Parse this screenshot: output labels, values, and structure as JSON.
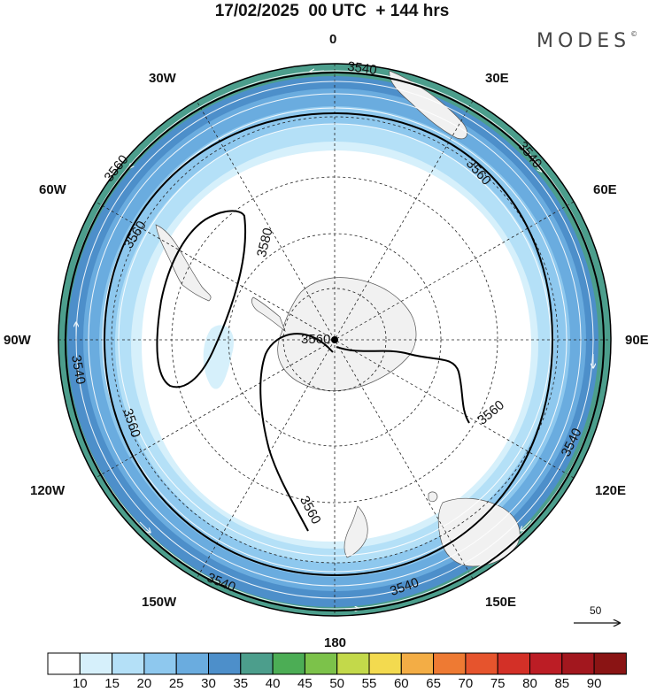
{
  "header": {
    "title": "17/02/2025  00 UTC  + 144 hrs",
    "brand": "MODES"
  },
  "map": {
    "projection": "south-polar-stereographic",
    "background_color": "#ffffff",
    "land_color": "#f1f1f1",
    "longitude_labels": [
      {
        "id": "lon-0",
        "text": "0"
      },
      {
        "id": "lon-30e",
        "text": "30E"
      },
      {
        "id": "lon-60e",
        "text": "60E"
      },
      {
        "id": "lon-90e",
        "text": "90E"
      },
      {
        "id": "lon-120e",
        "text": "120E"
      },
      {
        "id": "lon-150e",
        "text": "150E"
      },
      {
        "id": "lon-180",
        "text": "180"
      },
      {
        "id": "lon-150w",
        "text": "150W"
      },
      {
        "id": "lon-120w",
        "text": "120W"
      },
      {
        "id": "lon-90w",
        "text": "90W"
      },
      {
        "id": "lon-60w",
        "text": "60W"
      },
      {
        "id": "lon-30w",
        "text": "30W"
      }
    ],
    "contour_labels": [
      "3540",
      "3540",
      "3540",
      "3540",
      "3540",
      "3540",
      "3560",
      "3560",
      "3560",
      "3560",
      "3560",
      "3560",
      "3560",
      "3580"
    ],
    "wind_vector_reference": "50"
  },
  "colorbar": {
    "ticks": [
      "10",
      "15",
      "20",
      "25",
      "30",
      "35",
      "40",
      "45",
      "50",
      "55",
      "60",
      "65",
      "70",
      "75",
      "80",
      "85",
      "90"
    ],
    "colors": [
      "#ffffff",
      "#d6f0fb",
      "#b4e0f7",
      "#8ec8ee",
      "#6aacdf",
      "#4d8fca",
      "#4c9e8c",
      "#4cad55",
      "#7cc24a",
      "#c3d94a",
      "#f3da4f",
      "#f3ad45",
      "#ee7a33",
      "#e6542d",
      "#d33027",
      "#bc1d25",
      "#a2171e",
      "#8a1414"
    ]
  }
}
